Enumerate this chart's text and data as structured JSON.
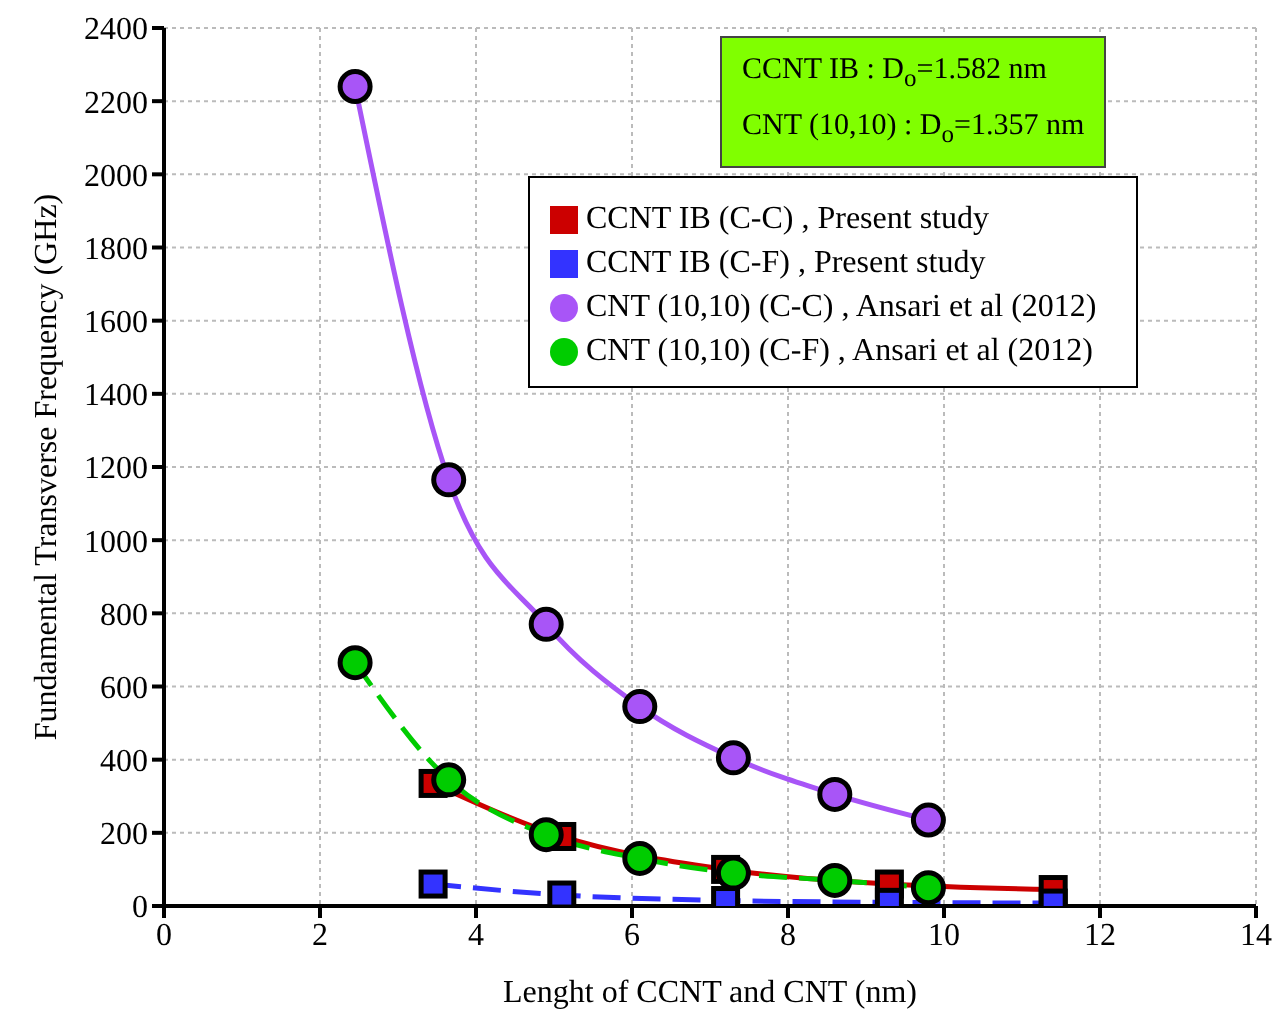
{
  "chart_data": {
    "type": "line",
    "xlabel": "Lenght of CCNT and CNT (nm)",
    "ylabel": "Fundamental Transverse Frequency (GHz)",
    "xlim": [
      0,
      14
    ],
    "xticks": [
      0,
      2,
      4,
      6,
      8,
      10,
      12,
      14
    ],
    "ylim": [
      0,
      2400
    ],
    "yticks": [
      0,
      200,
      400,
      600,
      800,
      1000,
      1200,
      1400,
      1600,
      1800,
      2000,
      2200,
      2400
    ],
    "grid": true,
    "legend": "top right",
    "annotations": [
      "CCNT IB :  D$_{o}$=1.582 nm",
      "CNT (10,10) :  D$_{o}$=1.357 nm"
    ],
    "series": [
      {
        "name": "CCNT IB (C-C) , Present study",
        "color": "#cc0000",
        "marker": "square",
        "line_style": "solid",
        "x": [
          3.45,
          5.1,
          7.2,
          9.3,
          11.4
        ],
        "values": [
          335,
          190,
          100,
          60,
          45
        ]
      },
      {
        "name": "CCNT IB (C-F) , Present study",
        "color": "#3333ff",
        "marker": "square",
        "line_style": "dashed",
        "x": [
          3.45,
          5.1,
          7.2,
          9.3,
          11.4
        ],
        "values": [
          60,
          30,
          15,
          10,
          8
        ]
      },
      {
        "name": "CNT (10,10) (C-C) , Ansari et al (2012)",
        "color": "#a855f7",
        "marker": "circle",
        "line_style": "solid",
        "x": [
          2.45,
          3.65,
          4.9,
          6.1,
          7.3,
          8.6,
          9.8
        ],
        "values": [
          2240,
          1165,
          770,
          545,
          405,
          305,
          235
        ]
      },
      {
        "name": "CNT (10,10) (C-F) , Ansari et al (2012)",
        "color": "#00cc00",
        "marker": "circle",
        "line_style": "dashed",
        "x": [
          2.45,
          3.65,
          4.9,
          6.1,
          7.3,
          8.6,
          9.8
        ],
        "values": [
          665,
          345,
          195,
          130,
          90,
          70,
          50
        ]
      }
    ]
  }
}
